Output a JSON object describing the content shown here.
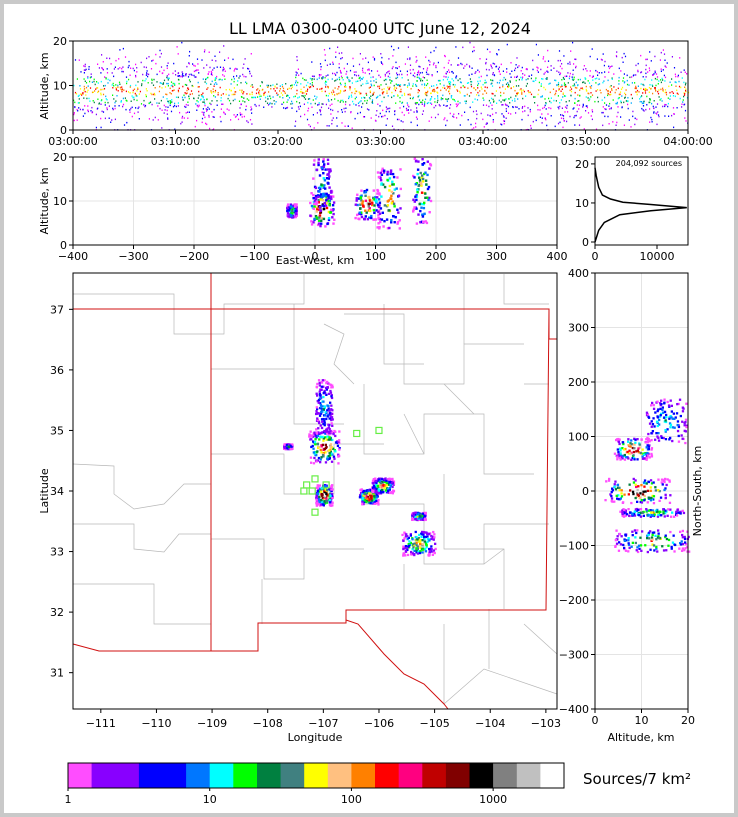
{
  "title": "LL LMA 0300-0400 UTC June 12, 2024",
  "colorbar": {
    "label": "Sources/7 km²",
    "ticks": [
      "1",
      "10",
      "100",
      "1000"
    ],
    "colors": [
      "#ff4dff",
      "#8800ff",
      "#8800ff",
      "#0000ff",
      "#0000ff",
      "#0077ff",
      "#00ffff",
      "#00ff00",
      "#008040",
      "#408080",
      "#ffff00",
      "#ffc080",
      "#ff8000",
      "#ff0000",
      "#ff0080",
      "#c00000",
      "#800000",
      "#000000",
      "#808080",
      "#c0c0c0",
      "#ffffff"
    ]
  },
  "chart_data": [
    {
      "type": "scatter",
      "name": "altitude-time",
      "ylabel": "Altitude, km",
      "xlabel": "",
      "ylim": [
        0,
        20
      ],
      "yticks": [
        "0",
        "10",
        "20"
      ],
      "xticks": [
        "03:00:00",
        "03:10:00",
        "03:20:00",
        "03:30:00",
        "03:40:00",
        "03:50:00",
        "04:00:00"
      ]
    },
    {
      "type": "heatmap",
      "name": "east-west-altitude",
      "xlabel": "East-West, km",
      "ylabel": "Altitude, km",
      "xlim": [
        -400,
        400
      ],
      "ylim": [
        0,
        20
      ],
      "xticks": [
        "−400",
        "−300",
        "−200",
        "−100",
        "0",
        "100",
        "200",
        "300",
        "400"
      ],
      "yticks": [
        "0",
        "10",
        "20"
      ],
      "cells": [
        {
          "x": -40,
          "z": 8,
          "w": 16,
          "h": 3,
          "v": 0.5
        },
        {
          "x": 10,
          "z": 8.5,
          "w": 40,
          "h": 8,
          "v": 1.0
        },
        {
          "x": 10,
          "z": 14,
          "w": 30,
          "h": 12,
          "v": 0.3
        },
        {
          "x": 85,
          "z": 9.5,
          "w": 40,
          "h": 7,
          "v": 0.9
        },
        {
          "x": 120,
          "z": 11,
          "w": 40,
          "h": 14,
          "v": 0.7
        },
        {
          "x": 175,
          "z": 13,
          "w": 30,
          "h": 16,
          "v": 0.6
        }
      ]
    },
    {
      "type": "line",
      "name": "altitude-histogram",
      "annotation": "204,092 sources",
      "xlim": [
        0,
        15000
      ],
      "ylim": [
        0,
        20
      ],
      "xticks": [
        "0",
        "10000"
      ],
      "yticks": [
        "0",
        "10",
        "20"
      ],
      "profile": [
        [
          0,
          0
        ],
        [
          600,
          3
        ],
        [
          1500,
          5
        ],
        [
          4000,
          7
        ],
        [
          9000,
          8
        ],
        [
          14800,
          8.8
        ],
        [
          9000,
          9.6
        ],
        [
          4500,
          10.2
        ],
        [
          2500,
          11
        ],
        [
          1200,
          12
        ],
        [
          600,
          14
        ],
        [
          200,
          17
        ],
        [
          0,
          19
        ]
      ]
    },
    {
      "type": "heatmap",
      "name": "plan-view-map",
      "xlabel": "Longitude",
      "ylabel": "Latitude",
      "xlim": [
        -111.5,
        -102.8
      ],
      "ylim": [
        30.4,
        37.6
      ],
      "xticks": [
        "−111",
        "−110",
        "−109",
        "−108",
        "−107",
        "−106",
        "−105",
        "−104",
        "−103"
      ],
      "yticks": [
        "31",
        "32",
        "33",
        "34",
        "35",
        "36",
        "37"
      ],
      "cells": [
        {
          "lon": -107.0,
          "lat": 34.75,
          "w": 0.55,
          "h": 0.55,
          "v": 0.8
        },
        {
          "lon": -107.0,
          "lat": 35.4,
          "w": 0.3,
          "h": 0.9,
          "v": 0.3
        },
        {
          "lon": -107.0,
          "lat": 33.95,
          "w": 0.3,
          "h": 0.35,
          "v": 1.0
        },
        {
          "lon": -106.2,
          "lat": 33.92,
          "w": 0.35,
          "h": 0.25,
          "v": 0.9
        },
        {
          "lon": -105.95,
          "lat": 34.1,
          "w": 0.4,
          "h": 0.25,
          "v": 0.7
        },
        {
          "lon": -105.3,
          "lat": 33.6,
          "w": 0.25,
          "h": 0.12,
          "v": 0.5
        },
        {
          "lon": -105.3,
          "lat": 33.15,
          "w": 0.6,
          "h": 0.4,
          "v": 0.6
        },
        {
          "lon": -107.65,
          "lat": 34.75,
          "w": 0.15,
          "h": 0.08,
          "v": 0.4
        }
      ],
      "stations": [
        [
          -107.3,
          34.1
        ],
        [
          -107.35,
          34.0
        ],
        [
          -107.15,
          34.2
        ],
        [
          -106.95,
          34.1
        ],
        [
          -107.15,
          33.65
        ],
        [
          -106.4,
          34.95
        ],
        [
          -106.0,
          35.0
        ],
        [
          -107.2,
          34.0
        ]
      ]
    },
    {
      "type": "heatmap",
      "name": "altitude-north-south",
      "xlabel": "Altitude, km",
      "ylabel": "North-South, km",
      "xlim": [
        0,
        20
      ],
      "ylim": [
        -400,
        400
      ],
      "xticks": [
        "0",
        "10",
        "20"
      ],
      "yticks": [
        "−400",
        "−300",
        "−200",
        "−100",
        "0",
        "100",
        "200",
        "300",
        "400"
      ],
      "cells": [
        {
          "z": 8,
          "y": 78,
          "w": 8,
          "h": 40,
          "v": 0.9
        },
        {
          "z": 15,
          "y": 130,
          "w": 9,
          "h": 80,
          "v": 0.3
        },
        {
          "z": 9,
          "y": 2,
          "w": 14,
          "h": 45,
          "v": 1.0
        },
        {
          "z": 12,
          "y": -38,
          "w": 14,
          "h": 15,
          "v": 0.5
        },
        {
          "z": 12,
          "y": -90,
          "w": 16,
          "h": 40,
          "v": 0.6
        }
      ]
    }
  ]
}
